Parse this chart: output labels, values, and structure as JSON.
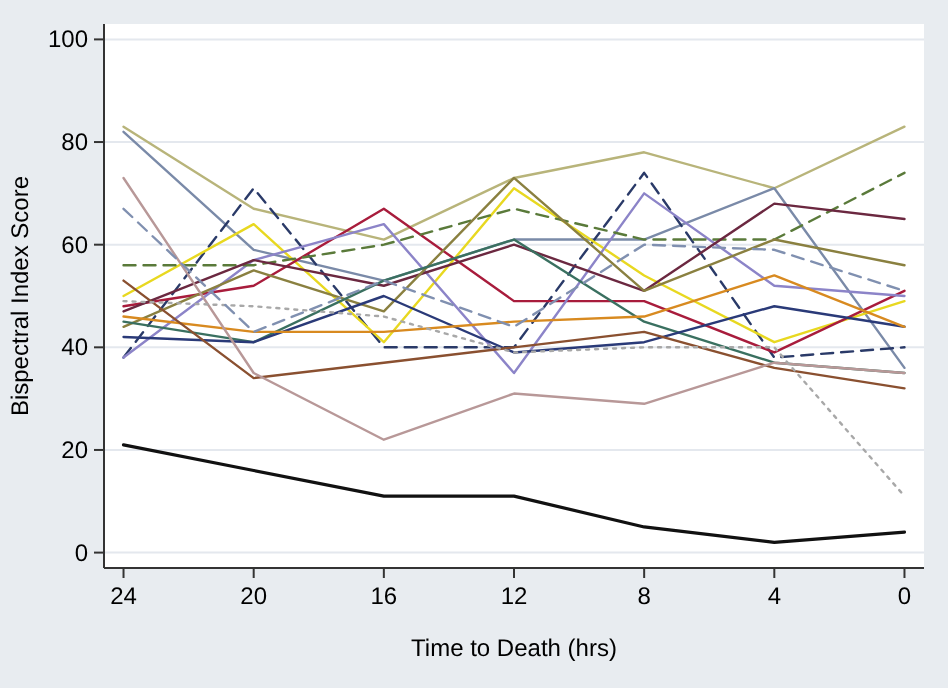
{
  "chart_data": {
    "type": "line",
    "xlabel": "Time to Death (hrs)",
    "ylabel": "Bispectral Index Score",
    "x": [
      24,
      20,
      16,
      12,
      8,
      4,
      0
    ],
    "xlim": [
      24.6,
      -0.6
    ],
    "xticks": [
      24,
      20,
      16,
      12,
      8,
      4,
      0
    ],
    "ylim": [
      -3,
      103
    ],
    "yticks": [
      0,
      20,
      40,
      60,
      80,
      100
    ],
    "grid": "y",
    "marker": "none",
    "series": [
      {
        "color": "#111111",
        "values": [
          21,
          16,
          11,
          11,
          5,
          2,
          4
        ]
      },
      {
        "color": "#b8b47a",
        "values": [
          83,
          67,
          61,
          73,
          78,
          71,
          83
        ]
      },
      {
        "color": "#7a8aa8",
        "values": [
          82,
          59,
          53,
          61,
          61,
          71,
          36
        ]
      },
      {
        "color": "#2a3a68",
        "line_style": "dashed",
        "values": [
          38,
          71,
          40,
          40,
          74,
          38,
          40
        ]
      },
      {
        "color": "#e8d820",
        "values": [
          50,
          64,
          41,
          71,
          54,
          41,
          49
        ]
      },
      {
        "color": "#a81c3c",
        "values": [
          48,
          52,
          67,
          49,
          49,
          39,
          51
        ]
      },
      {
        "color": "#8c84c8",
        "values": [
          38,
          57,
          64,
          35,
          70,
          52,
          50
        ]
      },
      {
        "color": "#5a7a3a",
        "line_style": "dashed",
        "values": [
          56,
          56,
          60,
          67,
          61,
          61,
          74
        ]
      },
      {
        "color": "#6b2840",
        "values": [
          47,
          57,
          52,
          60,
          51,
          68,
          65
        ]
      },
      {
        "color": "#8a8040",
        "values": [
          44,
          55,
          47,
          73,
          51,
          61,
          56
        ]
      },
      {
        "color": "#3a7060",
        "values": [
          45,
          41,
          53,
          61,
          45,
          37,
          35
        ]
      },
      {
        "color": "#2a3a78",
        "values": [
          42,
          41,
          50,
          39,
          41,
          48,
          44
        ]
      },
      {
        "color": "#d88a20",
        "values": [
          46,
          43,
          43,
          45,
          46,
          54,
          44
        ]
      },
      {
        "color": "#8a5030",
        "values": [
          53,
          34,
          37,
          40,
          43,
          36,
          32
        ]
      },
      {
        "color": "#b89898",
        "values": [
          73,
          35,
          22,
          31,
          29,
          37,
          35
        ]
      },
      {
        "color": "#a8a8a8",
        "line_style": "dotted",
        "values": [
          49,
          48,
          46,
          39,
          40,
          40,
          11
        ]
      },
      {
        "color": "#8090b0",
        "line_style": "dashed",
        "values": [
          67,
          43,
          53,
          44,
          60,
          59,
          51
        ]
      }
    ]
  }
}
